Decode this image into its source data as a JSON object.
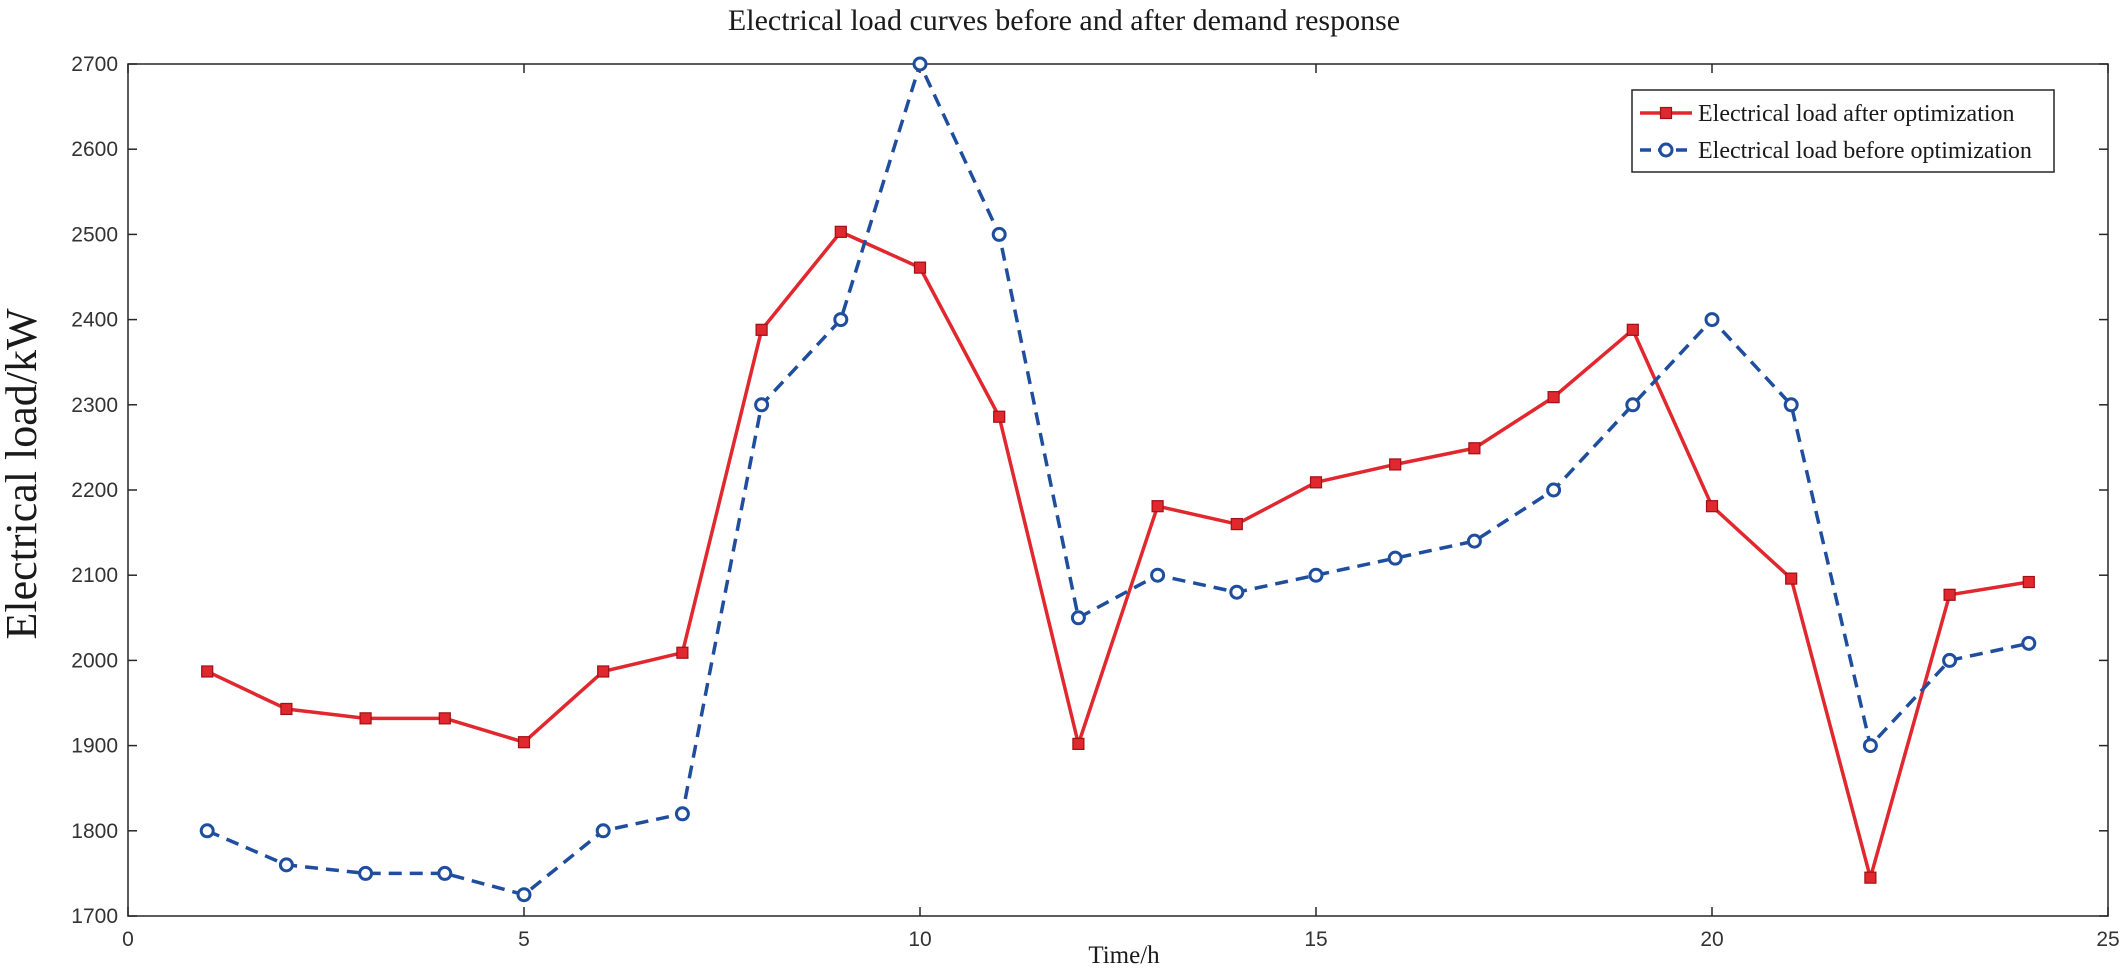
{
  "chart_data": {
    "type": "line",
    "title": "Electrical load curves before and after demand response",
    "xlabel": "Time/h",
    "ylabel": "Electrical load/kW",
    "xlim": [
      0,
      25
    ],
    "ylim": [
      1700,
      2700
    ],
    "xticks": [
      0,
      5,
      10,
      15,
      20,
      25
    ],
    "yticks": [
      1700,
      1800,
      1900,
      2000,
      2100,
      2200,
      2300,
      2400,
      2500,
      2600,
      2700
    ],
    "grid": false,
    "legend_position": "top-right",
    "x": [
      1,
      2,
      3,
      4,
      5,
      6,
      7,
      8,
      9,
      10,
      11,
      12,
      13,
      14,
      15,
      16,
      17,
      18,
      19,
      20,
      21,
      22,
      23,
      24
    ],
    "series": [
      {
        "name": "Electrical load after optimization",
        "color": "#e0282e",
        "style": "solid",
        "marker": "square",
        "values": [
          1987,
          1943,
          1932,
          1932,
          1904,
          1987,
          2009,
          2388,
          2503,
          2461,
          2286,
          1902,
          2181,
          2160,
          2209,
          2230,
          2249,
          2309,
          2388,
          2181,
          2096,
          1745,
          2077,
          2092
        ]
      },
      {
        "name": "Electrical load before optimization",
        "color": "#1f4e9e",
        "style": "dashed",
        "marker": "circle",
        "values": [
          1800,
          1760,
          1750,
          1750,
          1725,
          1800,
          1820,
          2300,
          2400,
          2700,
          2500,
          2050,
          2100,
          2080,
          2100,
          2120,
          2140,
          2200,
          2300,
          2400,
          2300,
          1900,
          2000,
          2020
        ]
      }
    ]
  }
}
